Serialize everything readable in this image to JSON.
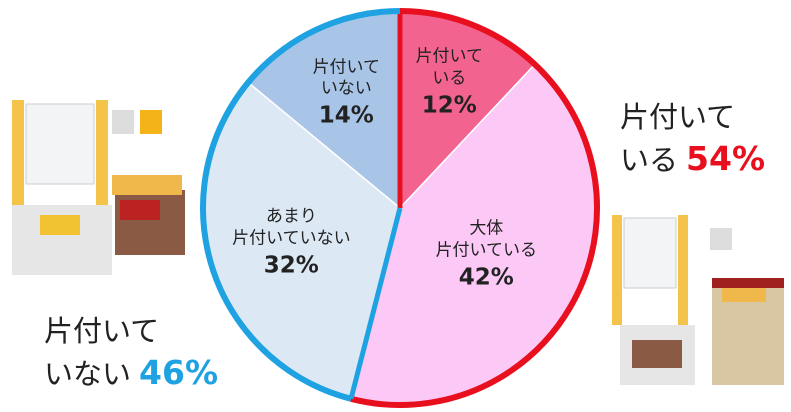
{
  "chart_data": {
    "type": "pie",
    "categories": [
      "片付いて\nいる",
      "大体\n片付いている",
      "あまり\n片付いていない",
      "片付いて\nいない"
    ],
    "values": [
      12,
      42,
      32,
      14
    ],
    "value_labels": [
      "12%",
      "42%",
      "32%",
      "14%"
    ],
    "colors": [
      "#f2638f",
      "#fcc9f6",
      "#dde8f5",
      "#a8c5e8"
    ],
    "groups": [
      {
        "name": "片付いて\nいる",
        "value": 54,
        "value_label": "54%",
        "color": "#e8101e"
      },
      {
        "name": "片付いて\nいない",
        "value": 46,
        "value_label": "46%",
        "color": "#1ea2e2"
      }
    ]
  }
}
